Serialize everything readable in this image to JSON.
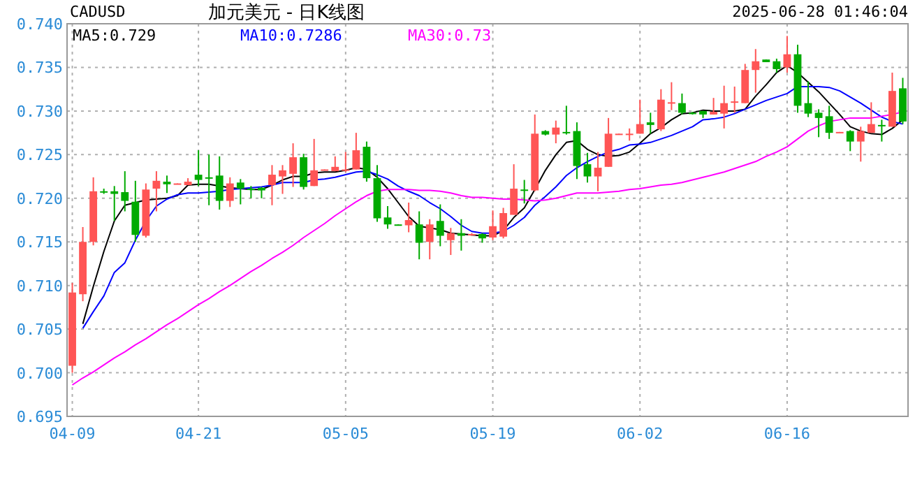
{
  "chart_data": {
    "type": "candlestick",
    "title": "加元美元 - 日K线图",
    "annotations": [
      "CADUSD",
      "2025-06-28 01:46:04"
    ],
    "categories": [
      "04-09",
      null,
      null,
      null,
      null,
      null,
      null,
      null,
      null,
      null,
      null,
      null,
      "04-21",
      null,
      null,
      null,
      null,
      null,
      null,
      null,
      null,
      null,
      null,
      null,
      null,
      null,
      "05-05",
      null,
      null,
      null,
      null,
      null,
      null,
      null,
      null,
      null,
      null,
      null,
      null,
      null,
      "05-19",
      null,
      null,
      null,
      null,
      null,
      null,
      null,
      null,
      null,
      null,
      null,
      null,
      null,
      "06-02",
      null,
      null,
      null,
      null,
      null,
      null,
      null,
      null,
      null,
      null,
      null,
      null,
      null,
      "06-16",
      null,
      null,
      null,
      null,
      null,
      null,
      null,
      null,
      null,
      null,
      null
    ],
    "ohlc": [
      [
        0.7008,
        0.7103,
        0.7,
        0.7092
      ],
      [
        0.709,
        0.7167,
        0.7082,
        0.715
      ],
      [
        0.715,
        0.7224,
        0.7146,
        0.7208
      ],
      [
        0.7208,
        0.7211,
        0.7205,
        0.7207
      ],
      [
        0.7208,
        0.7214,
        0.7174,
        0.7205
      ],
      [
        0.7207,
        0.7231,
        0.7185,
        0.7197
      ],
      [
        0.7196,
        0.722,
        0.715,
        0.7158
      ],
      [
        0.7157,
        0.7217,
        0.7155,
        0.721
      ],
      [
        0.7211,
        0.7231,
        0.7185,
        0.722
      ],
      [
        0.7219,
        0.7226,
        0.7206,
        0.7216
      ],
      [
        0.7216,
        0.7217,
        0.7216,
        0.7217
      ],
      [
        0.7215,
        0.7223,
        0.7215,
        0.7219
      ],
      [
        0.7227,
        0.7255,
        0.7214,
        0.7221
      ],
      [
        0.7224,
        0.725,
        0.7192,
        0.7223
      ],
      [
        0.7226,
        0.7248,
        0.7187,
        0.7197
      ],
      [
        0.7197,
        0.7224,
        0.719,
        0.7217
      ],
      [
        0.7218,
        0.7222,
        0.7193,
        0.7211
      ],
      [
        0.7211,
        0.7214,
        0.72,
        0.721
      ],
      [
        0.7212,
        0.7213,
        0.72,
        0.7209
      ],
      [
        0.7215,
        0.7238,
        0.7192,
        0.7227
      ],
      [
        0.7225,
        0.7238,
        0.7205,
        0.7232
      ],
      [
        0.7228,
        0.7263,
        0.7213,
        0.7247
      ],
      [
        0.7247,
        0.7251,
        0.721,
        0.7213
      ],
      [
        0.7214,
        0.7268,
        0.7214,
        0.7232
      ],
      [
        0.7232,
        0.7233,
        0.7232,
        0.7233
      ],
      [
        0.7231,
        0.7248,
        0.7231,
        0.7236
      ],
      [
        0.7232,
        0.7253,
        0.723,
        0.7233
      ],
      [
        0.7233,
        0.7275,
        0.7233,
        0.7255
      ],
      [
        0.7259,
        0.7265,
        0.7219,
        0.7223
      ],
      [
        0.7223,
        0.7238,
        0.7173,
        0.7177
      ],
      [
        0.7178,
        0.7191,
        0.7165,
        0.717
      ],
      [
        0.717,
        0.717,
        0.7169,
        0.7169
      ],
      [
        0.7169,
        0.7195,
        0.7161,
        0.7175
      ],
      [
        0.717,
        0.7185,
        0.713,
        0.7149
      ],
      [
        0.715,
        0.7176,
        0.713,
        0.717
      ],
      [
        0.7174,
        0.7193,
        0.7145,
        0.7157
      ],
      [
        0.7152,
        0.7166,
        0.7135,
        0.716
      ],
      [
        0.716,
        0.7176,
        0.714,
        0.7157
      ],
      [
        0.7158,
        0.716,
        0.7157,
        0.7159
      ],
      [
        0.7159,
        0.716,
        0.7149,
        0.7154
      ],
      [
        0.7155,
        0.7186,
        0.7152,
        0.7168
      ],
      [
        0.7156,
        0.7189,
        0.7154,
        0.7183
      ],
      [
        0.7181,
        0.7239,
        0.7181,
        0.7211
      ],
      [
        0.721,
        0.7221,
        0.7194,
        0.7209
      ],
      [
        0.7209,
        0.7296,
        0.7208,
        0.7274
      ],
      [
        0.7277,
        0.7278,
        0.7272,
        0.7273
      ],
      [
        0.7273,
        0.7289,
        0.7263,
        0.7281
      ],
      [
        0.7276,
        0.7306,
        0.7273,
        0.7275
      ],
      [
        0.7277,
        0.7287,
        0.7222,
        0.7237
      ],
      [
        0.7239,
        0.7252,
        0.7218,
        0.7225
      ],
      [
        0.7225,
        0.7253,
        0.7208,
        0.7235
      ],
      [
        0.7236,
        0.7292,
        0.7236,
        0.7274
      ],
      [
        0.7273,
        0.7274,
        0.7273,
        0.7274
      ],
      [
        0.7273,
        0.728,
        0.7266,
        0.7274
      ],
      [
        0.7274,
        0.7313,
        0.7274,
        0.7285
      ],
      [
        0.7287,
        0.7298,
        0.7274,
        0.7284
      ],
      [
        0.7279,
        0.7325,
        0.7277,
        0.7313
      ],
      [
        0.7309,
        0.7333,
        0.7301,
        0.731
      ],
      [
        0.7309,
        0.732,
        0.7296,
        0.7298
      ],
      [
        0.7298,
        0.7299,
        0.7296,
        0.7297
      ],
      [
        0.73,
        0.73,
        0.7292,
        0.7296
      ],
      [
        0.7296,
        0.7315,
        0.7296,
        0.7299
      ],
      [
        0.7297,
        0.7329,
        0.728,
        0.7309
      ],
      [
        0.731,
        0.7328,
        0.7298,
        0.7311
      ],
      [
        0.7309,
        0.7354,
        0.7309,
        0.7347
      ],
      [
        0.7347,
        0.7371,
        0.7321,
        0.7357
      ],
      [
        0.7359,
        0.7359,
        0.7356,
        0.7356
      ],
      [
        0.7357,
        0.736,
        0.7344,
        0.7348
      ],
      [
        0.735,
        0.7386,
        0.7344,
        0.7365
      ],
      [
        0.7365,
        0.7376,
        0.7298,
        0.7306
      ],
      [
        0.7309,
        0.7334,
        0.7293,
        0.7297
      ],
      [
        0.7298,
        0.7302,
        0.727,
        0.7292
      ],
      [
        0.7294,
        0.7306,
        0.7268,
        0.7275
      ],
      [
        0.7275,
        0.7276,
        0.7275,
        0.7276
      ],
      [
        0.7277,
        0.7278,
        0.7254,
        0.7265
      ],
      [
        0.7265,
        0.7282,
        0.7242,
        0.7277
      ],
      [
        0.7275,
        0.731,
        0.7275,
        0.7285
      ],
      [
        0.7284,
        0.729,
        0.7265,
        0.7283
      ],
      [
        0.7282,
        0.7344,
        0.7282,
        0.7323
      ],
      [
        0.7326,
        0.7338,
        0.7285,
        0.7288
      ]
    ],
    "colors": [
      "#ff5555",
      "#ff5555",
      "#ff5555",
      "#00aa00",
      "#00aa00",
      "#00aa00",
      "#00aa00",
      "#ff5555",
      "#ff5555",
      "#00aa00",
      "#ff5555",
      "#ff5555",
      "#00aa00",
      "#00aa00",
      "#00aa00",
      "#ff5555",
      "#00aa00",
      "#00aa00",
      "#00aa00",
      "#ff5555",
      "#ff5555",
      "#ff5555",
      "#00aa00",
      "#ff5555",
      "#ff5555",
      "#ff5555",
      "#ff5555",
      "#ff5555",
      "#00aa00",
      "#00aa00",
      "#00aa00",
      "#00aa00",
      "#ff5555",
      "#00aa00",
      "#ff5555",
      "#00aa00",
      "#ff5555",
      "#00aa00",
      "#ff5555",
      "#00aa00",
      "#ff5555",
      "#ff5555",
      "#ff5555",
      "#00aa00",
      "#ff5555",
      "#00aa00",
      "#ff5555",
      "#00aa00",
      "#00aa00",
      "#00aa00",
      "#ff5555",
      "#ff5555",
      "#ff5555",
      "#ff5555",
      "#ff5555",
      "#00aa00",
      "#ff5555",
      "#ff5555",
      "#00aa00",
      "#00aa00",
      "#00aa00",
      "#ff5555",
      "#ff5555",
      "#ff5555",
      "#ff5555",
      "#ff5555",
      "#00aa00",
      "#00aa00",
      "#ff5555",
      "#00aa00",
      "#00aa00",
      "#00aa00",
      "#00aa00",
      "#ff5555",
      "#00aa00",
      "#ff5555",
      "#ff5555",
      "#00aa00",
      "#ff5555",
      "#00aa00"
    ],
    "series": [
      {
        "name": "MA5:0.729",
        "type": "line",
        "color": "#000000",
        "values": [
          null,
          0.7056,
          0.7099,
          0.7139,
          0.7174,
          0.7192,
          0.7195,
          0.7198,
          0.7199,
          0.72,
          0.7203,
          0.7215,
          0.7216,
          0.7216,
          0.7214,
          0.7212,
          0.7211,
          0.721,
          0.721,
          0.7215,
          0.7221,
          0.7225,
          0.7225,
          0.7229,
          0.723,
          0.723,
          0.7232,
          0.7235,
          0.7233,
          0.7224,
          0.7211,
          0.7195,
          0.7179,
          0.7168,
          0.7166,
          0.7164,
          0.716,
          0.7159,
          0.7158,
          0.7157,
          0.7157,
          0.7163,
          0.7178,
          0.7189,
          0.721,
          0.7232,
          0.725,
          0.7264,
          0.7266,
          0.7256,
          0.725,
          0.7248,
          0.7249,
          0.7253,
          0.7263,
          0.7274,
          0.7281,
          0.729,
          0.7297,
          0.7298,
          0.7301,
          0.73,
          0.73,
          0.73,
          0.7302,
          0.7317,
          0.733,
          0.7344,
          0.7352,
          0.7344,
          0.7333,
          0.7322,
          0.7309,
          0.7296,
          0.7282,
          0.7277,
          0.7274,
          0.7273,
          0.728,
          0.729
        ]
      },
      {
        "name": "MA10:0.7286",
        "type": "line",
        "color": "#0000ff",
        "values": [
          null,
          0.7051,
          0.707,
          0.7088,
          0.7115,
          0.7126,
          0.7152,
          0.7174,
          0.7191,
          0.7199,
          0.7204,
          0.7206,
          0.7206,
          0.7207,
          0.7208,
          0.721,
          0.7211,
          0.7212,
          0.7213,
          0.7215,
          0.7218,
          0.7218,
          0.7218,
          0.7221,
          0.7222,
          0.7224,
          0.7227,
          0.723,
          0.7231,
          0.7227,
          0.7222,
          0.7214,
          0.7208,
          0.7203,
          0.7195,
          0.7188,
          0.7179,
          0.7169,
          0.7162,
          0.716,
          0.716,
          0.7162,
          0.7169,
          0.7178,
          0.7192,
          0.7202,
          0.7213,
          0.7226,
          0.7235,
          0.7242,
          0.7248,
          0.7253,
          0.7256,
          0.7261,
          0.7262,
          0.7264,
          0.7268,
          0.7272,
          0.7277,
          0.7282,
          0.729,
          0.7291,
          0.7293,
          0.7297,
          0.7302,
          0.7307,
          0.7312,
          0.7316,
          0.732,
          0.7328,
          0.7328,
          0.7328,
          0.7327,
          0.7323,
          0.7316,
          0.7309,
          0.7301,
          0.7293,
          0.7288,
          0.7285
        ]
      },
      {
        "name": "MA30:0.73",
        "type": "line",
        "color": "#ff00ff",
        "values": [
          0.6986,
          0.6994,
          0.7001,
          0.7009,
          0.7017,
          0.7024,
          0.7032,
          0.7039,
          0.7047,
          0.7055,
          0.7062,
          0.707,
          0.7078,
          0.7085,
          0.7093,
          0.71,
          0.7108,
          0.7116,
          0.7123,
          0.7131,
          0.7138,
          0.7146,
          0.7155,
          0.7163,
          0.7171,
          0.718,
          0.7188,
          0.7196,
          0.7203,
          0.7208,
          0.721,
          0.721,
          0.721,
          0.7209,
          0.7209,
          0.7208,
          0.7206,
          0.7203,
          0.7201,
          0.7201,
          0.72,
          0.7199,
          0.7199,
          0.7198,
          0.7197,
          0.7198,
          0.72,
          0.7203,
          0.7206,
          0.7206,
          0.7206,
          0.7207,
          0.7208,
          0.721,
          0.7211,
          0.7213,
          0.7215,
          0.7216,
          0.7218,
          0.7221,
          0.7224,
          0.7227,
          0.723,
          0.7234,
          0.7238,
          0.7242,
          0.7248,
          0.7253,
          0.7259,
          0.7268,
          0.7277,
          0.7283,
          0.7288,
          0.729,
          0.7292,
          0.7292,
          0.7292,
          0.7294,
          0.7296,
          0.7299
        ]
      }
    ],
    "ylim": [
      0.695,
      0.74
    ],
    "yticks": [
      {
        "value": 0.695,
        "label": "0.695"
      },
      {
        "value": 0.7,
        "label": "0.700"
      },
      {
        "value": 0.705,
        "label": "0.705"
      },
      {
        "value": 0.71,
        "label": "0.710"
      },
      {
        "value": 0.715,
        "label": "0.715"
      },
      {
        "value": 0.72,
        "label": "0.720"
      },
      {
        "value": 0.725,
        "label": "0.725"
      },
      {
        "value": 0.73,
        "label": "0.730"
      },
      {
        "value": 0.735,
        "label": "0.735"
      },
      {
        "value": 0.74,
        "label": "0.740"
      }
    ],
    "grid": true,
    "legend": "top left"
  }
}
